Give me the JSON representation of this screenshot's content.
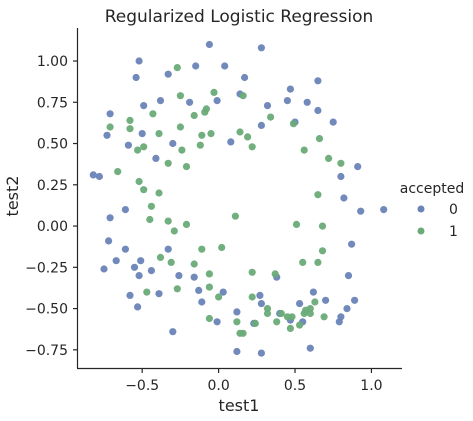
{
  "chart_data": {
    "type": "scatter",
    "title": "Regularized Logistic Regression",
    "xlabel": "test1",
    "ylabel": "test2",
    "xlim": [
      -0.92,
      1.2
    ],
    "ylim": [
      -0.86,
      1.2
    ],
    "x_ticks": [
      -0.5,
      0.0,
      0.5,
      1.0
    ],
    "x_tick_labels": [
      "−0.5",
      "0.0",
      "0.5",
      "1.0"
    ],
    "y_ticks": [
      -0.75,
      -0.5,
      -0.25,
      0.0,
      0.25,
      0.5,
      0.75,
      1.0
    ],
    "y_tick_labels": [
      "−0.75",
      "−0.50",
      "−0.25",
      "0.00",
      "0.25",
      "0.50",
      "0.75",
      "1.00"
    ],
    "grid": false,
    "legend": {
      "title": "accepted",
      "placement": "outside-right",
      "entries": [
        "0",
        "1"
      ]
    },
    "colors": {
      "0": "#6a83b8",
      "1": "#6aab78"
    },
    "series": [
      {
        "name": "0",
        "points": [
          [
            -0.52,
            1.0
          ],
          [
            -0.06,
            1.1
          ],
          [
            0.28,
            1.08
          ],
          [
            -0.54,
            0.9
          ],
          [
            -0.33,
            0.92
          ],
          [
            -0.15,
            0.97
          ],
          [
            0.04,
            0.97
          ],
          [
            0.17,
            0.9
          ],
          [
            0.47,
            0.83
          ],
          [
            0.65,
            0.88
          ],
          [
            -0.71,
            0.68
          ],
          [
            -0.49,
            0.73
          ],
          [
            -0.38,
            0.76
          ],
          [
            -0.19,
            0.75
          ],
          [
            -0.01,
            0.76
          ],
          [
            0.14,
            0.8
          ],
          [
            0.32,
            0.73
          ],
          [
            0.45,
            0.76
          ],
          [
            0.58,
            0.75
          ],
          [
            0.75,
            0.63
          ],
          [
            -0.73,
            0.55
          ],
          [
            -0.59,
            0.49
          ],
          [
            -0.5,
            0.56
          ],
          [
            0.08,
            0.51
          ],
          [
            0.28,
            0.61
          ],
          [
            0.5,
            0.63
          ],
          [
            0.65,
            0.7
          ],
          [
            -0.82,
            0.31
          ],
          [
            -0.78,
            0.3
          ],
          [
            0.8,
            0.3
          ],
          [
            0.91,
            0.36
          ],
          [
            -0.3,
            0.5
          ],
          [
            -0.41,
            0.41
          ],
          [
            0.82,
            0.17
          ],
          [
            -0.71,
            0.05
          ],
          [
            -0.61,
            0.1
          ],
          [
            0.93,
            0.09
          ],
          [
            1.08,
            0.1
          ],
          [
            -0.72,
            -0.09
          ],
          [
            -0.61,
            -0.14
          ],
          [
            -0.33,
            -0.14
          ],
          [
            0.87,
            -0.11
          ],
          [
            -0.67,
            -0.21
          ],
          [
            -0.51,
            -0.21
          ],
          [
            -0.55,
            -0.25
          ],
          [
            -0.44,
            -0.27
          ],
          [
            -0.26,
            -0.3
          ],
          [
            0.38,
            -0.31
          ],
          [
            -0.75,
            -0.26
          ],
          [
            -0.52,
            -0.3
          ],
          [
            -0.16,
            -0.31
          ],
          [
            0.85,
            -0.3
          ],
          [
            -0.58,
            -0.42
          ],
          [
            -0.39,
            -0.41
          ],
          [
            -0.13,
            -0.39
          ],
          [
            0.03,
            -0.4
          ],
          [
            0.27,
            -0.42
          ],
          [
            0.62,
            -0.4
          ],
          [
            0.7,
            -0.45
          ],
          [
            0.89,
            -0.45
          ],
          [
            -0.53,
            -0.49
          ],
          [
            -0.11,
            -0.46
          ],
          [
            0.28,
            -0.47
          ],
          [
            0.53,
            -0.47
          ],
          [
            0.84,
            -0.5
          ],
          [
            0.12,
            -0.52
          ],
          [
            0.8,
            -0.55
          ],
          [
            0.4,
            -0.53
          ],
          [
            -0.01,
            -0.58
          ],
          [
            0.23,
            -0.59
          ],
          [
            0.47,
            -0.57
          ],
          [
            0.79,
            -0.58
          ],
          [
            0.55,
            -0.58
          ],
          [
            -0.3,
            -0.64
          ],
          [
            0.6,
            -0.74
          ],
          [
            0.12,
            -0.76
          ],
          [
            0.28,
            -0.77
          ]
        ]
      },
      {
        "name": "1",
        "points": [
          [
            -0.27,
            0.96
          ],
          [
            -0.43,
            0.68
          ],
          [
            -0.25,
            0.79
          ],
          [
            -0.03,
            0.81
          ],
          [
            -0.08,
            0.71
          ],
          [
            0.16,
            0.79
          ],
          [
            -0.16,
            0.67
          ],
          [
            -0.09,
            0.69
          ],
          [
            -0.58,
            0.64
          ],
          [
            -0.25,
            0.6
          ],
          [
            -0.11,
            0.55
          ],
          [
            -0.05,
            0.56
          ],
          [
            -0.58,
            0.59
          ],
          [
            0.14,
            0.57
          ],
          [
            0.19,
            0.54
          ],
          [
            0.34,
            0.66
          ],
          [
            0.49,
            0.62
          ],
          [
            -0.71,
            0.6
          ],
          [
            -0.49,
            0.48
          ],
          [
            -0.39,
            0.56
          ],
          [
            0.22,
            0.48
          ],
          [
            0.56,
            0.46
          ],
          [
            -0.53,
            0.46
          ],
          [
            0.66,
            0.53
          ],
          [
            -0.24,
            0.46
          ],
          [
            -0.33,
            0.38
          ],
          [
            -0.12,
            0.49
          ],
          [
            0.72,
            0.41
          ],
          [
            -0.52,
            0.27
          ],
          [
            -0.21,
            0.36
          ],
          [
            0.8,
            0.38
          ],
          [
            -0.66,
            0.33
          ],
          [
            -0.39,
            0.2
          ],
          [
            0.11,
            0.06
          ],
          [
            0.65,
            0.19
          ],
          [
            -0.44,
            0.12
          ],
          [
            -0.49,
            0.22
          ],
          [
            -0.45,
            0.04
          ],
          [
            -0.33,
            0.03
          ],
          [
            -0.21,
            0.01
          ],
          [
            0.51,
            0.01
          ],
          [
            0.68,
            0.0
          ],
          [
            -0.29,
            -0.03
          ],
          [
            0.68,
            -0.15
          ],
          [
            -0.11,
            -0.14
          ],
          [
            0.02,
            -0.13
          ],
          [
            0.65,
            -0.22
          ],
          [
            -0.38,
            -0.19
          ],
          [
            -0.31,
            -0.22
          ],
          [
            -0.16,
            -0.23
          ],
          [
            -0.06,
            -0.29
          ],
          [
            0.55,
            -0.22
          ],
          [
            0.22,
            -0.28
          ],
          [
            0.37,
            -0.29
          ],
          [
            -0.47,
            -0.4
          ],
          [
            -0.27,
            -0.38
          ],
          [
            -0.06,
            -0.37
          ],
          [
            0.22,
            -0.43
          ],
          [
            0.57,
            -0.51
          ],
          [
            0.32,
            -0.53
          ],
          [
            0.48,
            -0.55
          ],
          [
            -0.06,
            -0.56
          ],
          [
            -0.0,
            -0.43
          ],
          [
            0.12,
            -0.58
          ],
          [
            0.38,
            -0.58
          ],
          [
            0.63,
            -0.46
          ],
          [
            0.56,
            -0.53
          ],
          [
            0.6,
            -0.5
          ],
          [
            0.45,
            -0.55
          ],
          [
            0.53,
            -0.6
          ],
          [
            0.32,
            -0.5
          ],
          [
            0.16,
            -0.65
          ],
          [
            0.24,
            -0.59
          ],
          [
            0.69,
            -0.55
          ],
          [
            0.6,
            -0.53
          ],
          [
            0.41,
            -0.53
          ],
          [
            0.47,
            -0.62
          ],
          [
            0.14,
            -0.65
          ]
        ]
      }
    ]
  }
}
